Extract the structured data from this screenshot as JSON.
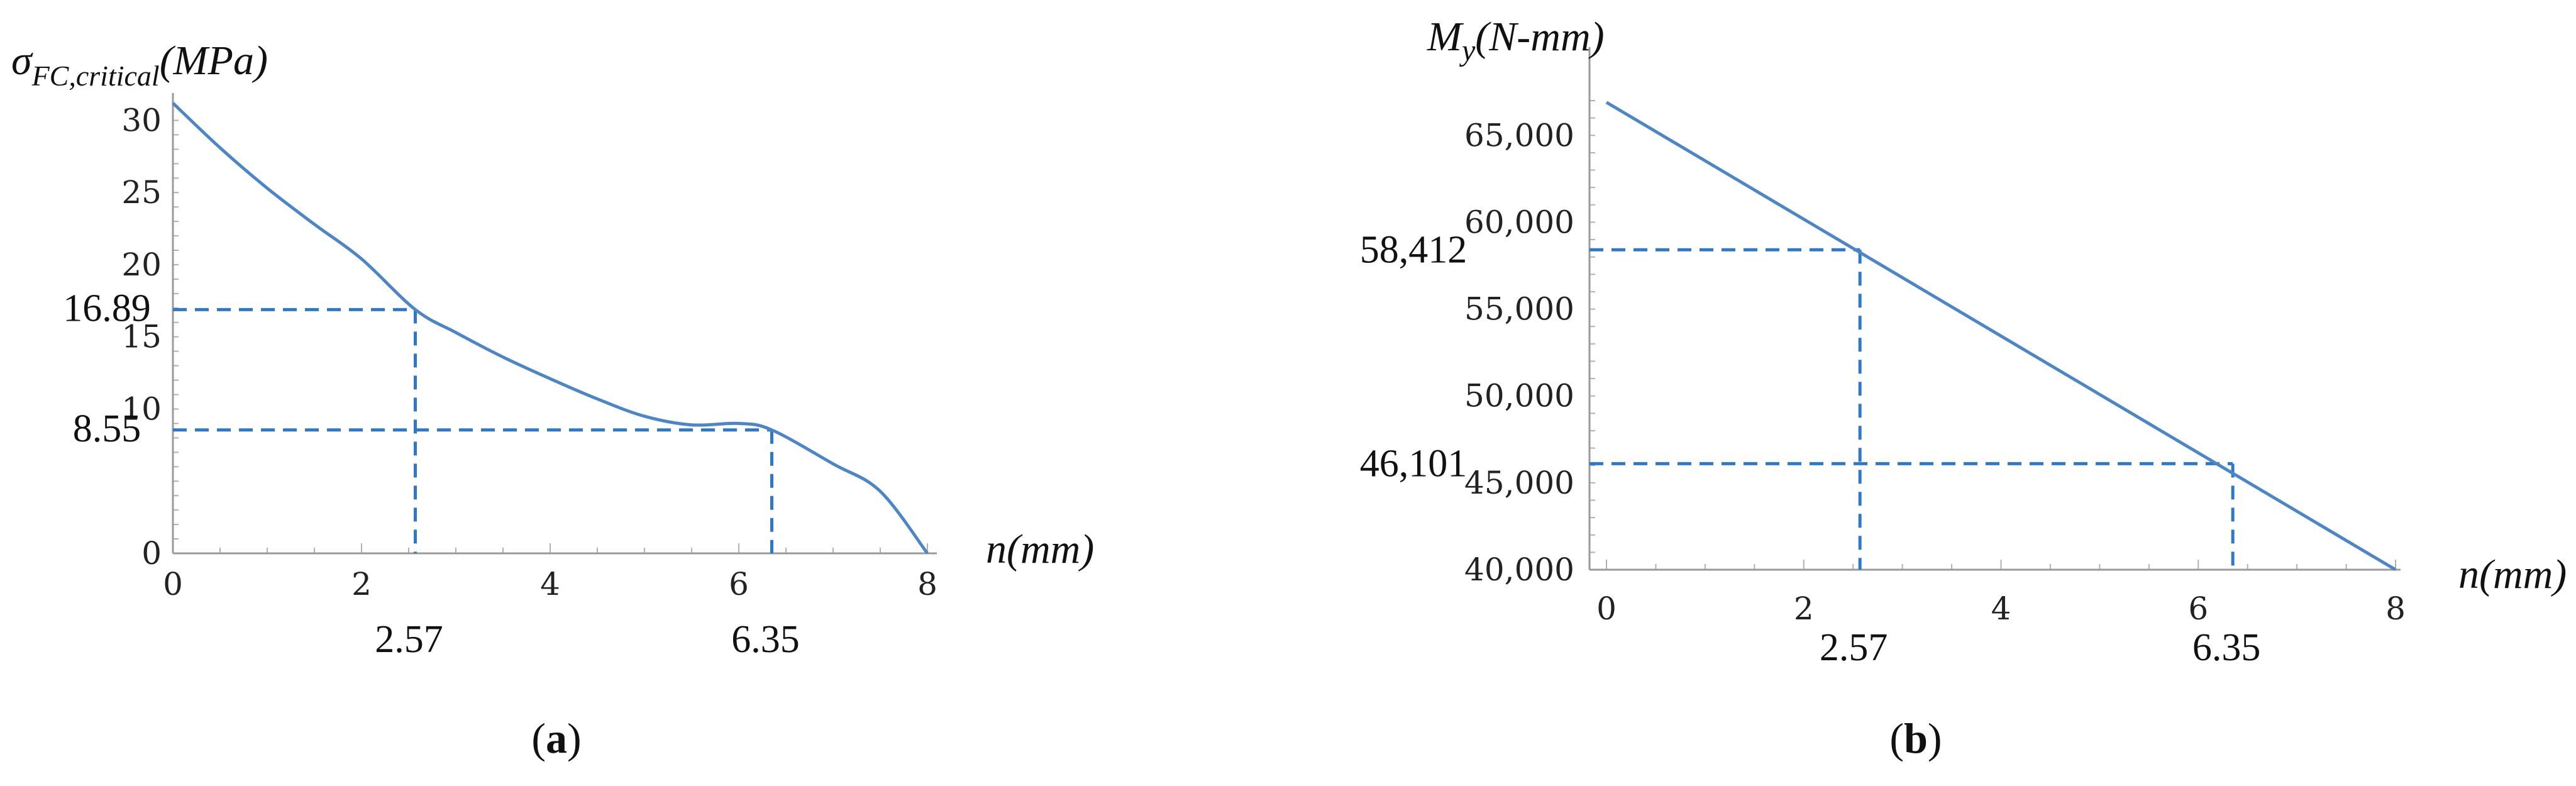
{
  "chart_data": [
    {
      "type": "line",
      "panel_label": "a",
      "ylabel": "σ_FC,critical(MPa)",
      "ylabel_main": "σ",
      "ylabel_sub": "FC,critical",
      "ylabel_unit": "(MPa)",
      "xlabel": "n(mm)",
      "xlim": [
        0,
        8
      ],
      "ylim": [
        0,
        31.5
      ],
      "x_ticks": [
        "0",
        "2",
        "4",
        "6",
        "8"
      ],
      "x_tick_values": [
        0,
        2,
        4,
        6,
        8
      ],
      "y_ticks": [
        "0",
        "10",
        "15",
        "20",
        "25",
        "30"
      ],
      "y_tick_values": [
        0,
        10,
        15,
        20,
        25,
        30
      ],
      "series": [
        {
          "x": [
            0,
            0.5,
            1,
            1.5,
            2,
            2.57,
            3,
            3.5,
            4,
            4.5,
            5,
            5.5,
            6,
            6.35,
            7,
            7.5,
            8
          ],
          "y": [
            31.2,
            28.1,
            25.3,
            22.8,
            20.4,
            16.89,
            15.3,
            13.6,
            12.1,
            10.7,
            9.5,
            8.9,
            9.0,
            8.55,
            6.2,
            4.3,
            0
          ]
        }
      ],
      "annotations": [
        {
          "x": 2.57,
          "y": 16.89,
          "x_label": "2.57",
          "y_label": "16.89"
        },
        {
          "x": 6.35,
          "y": 8.55,
          "x_label": "6.35",
          "y_label": "8.55"
        }
      ]
    },
    {
      "type": "line",
      "panel_label": "b",
      "ylabel": "My(N-mm)",
      "ylabel_main": "M",
      "ylabel_sub": "y",
      "ylabel_unit": "(N-mm)",
      "xlabel": "n(mm)",
      "xlim": [
        0,
        8
      ],
      "ylim": [
        40000,
        67000
      ],
      "x_ticks": [
        "0",
        "2",
        "4",
        "6",
        "8"
      ],
      "x_tick_values": [
        0,
        2,
        4,
        6,
        8
      ],
      "y_ticks": [
        "40,000",
        "45,000",
        "50,000",
        "55,000",
        "60,000",
        "65,000"
      ],
      "y_tick_values": [
        40000,
        45000,
        50000,
        55000,
        60000,
        65000
      ],
      "series": [
        {
          "x": [
            0,
            8
          ],
          "y": [
            66900,
            40000
          ]
        }
      ],
      "annotations": [
        {
          "x": 2.57,
          "y": 58412,
          "x_label": "2.57",
          "y_label": "58,412"
        },
        {
          "x": 6.35,
          "y": 46101,
          "x_label": "6.35",
          "y_label": "46,101"
        }
      ]
    }
  ]
}
